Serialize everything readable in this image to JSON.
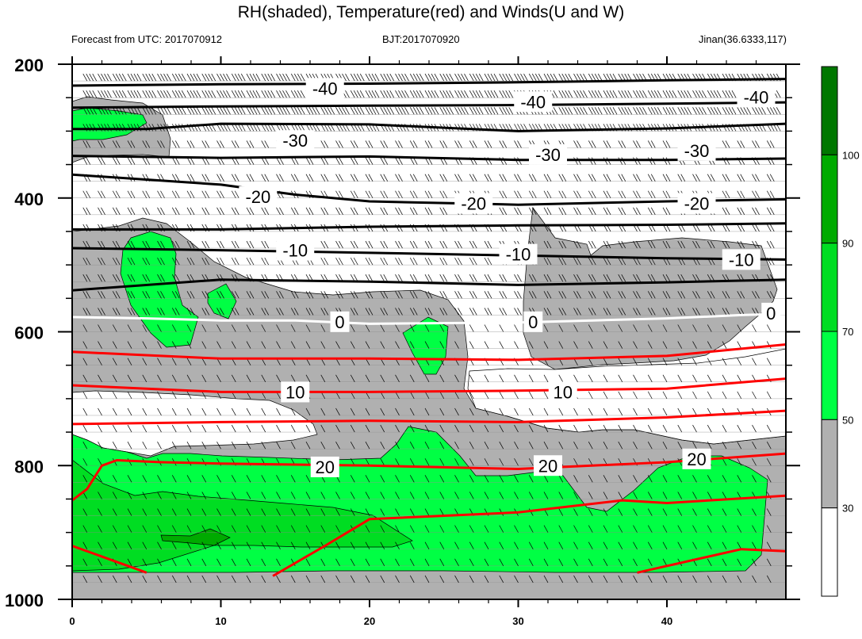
{
  "title": "RH(shaded), Temperature(red) and Winds(U and W)",
  "subtitle_left": "Forecast from UTC: 2017070912",
  "subtitle_center": "BJT:2017070920",
  "subtitle_right": "Jinan(36.6333,117)",
  "colors": {
    "rh_lt30": "#ffffff",
    "rh_30_50": "#b0b0b0",
    "rh_50_70": "#00ff44",
    "rh_70_90": "#00dd22",
    "rh_90_100": "#00aa00",
    "rh_gt100": "#007700",
    "temp_positive": "#ff0000",
    "temp_zero": "#ffffff",
    "temp_negative": "#000000"
  },
  "chart_data": {
    "type": "heatmap",
    "x_range": [
      0,
      48
    ],
    "y_range": [
      200,
      1000
    ],
    "y_inverted": true,
    "x_ticks": [
      0,
      10,
      20,
      30,
      40
    ],
    "y_ticks": [
      200,
      400,
      600,
      800,
      1000
    ],
    "colorbar": {
      "levels": [
        30,
        50,
        70,
        90,
        100
      ],
      "labels": [
        "30",
        "50",
        "70",
        "90",
        "100"
      ]
    },
    "temperature_contours": [
      {
        "value": -40,
        "label": "-40",
        "color": "#000000",
        "points": [
          [
            0,
            232
          ],
          [
            10,
            230
          ],
          [
            20,
            229
          ],
          [
            30,
            227
          ],
          [
            40,
            224
          ],
          [
            48,
            222
          ]
        ],
        "labels_at": [
          [
            17,
            236
          ],
          [
            31,
            256
          ],
          [
            46,
            249
          ]
        ]
      },
      {
        "value": -40,
        "label": "",
        "color": "#000000",
        "points": [
          [
            0,
            265
          ],
          [
            10,
            263
          ],
          [
            20,
            262
          ],
          [
            30,
            261
          ],
          [
            40,
            259
          ],
          [
            48,
            257
          ]
        ],
        "labels_at": []
      },
      {
        "value": -30,
        "label": "-30",
        "color": "#000000",
        "points": [
          [
            0,
            297
          ],
          [
            5,
            297
          ],
          [
            10,
            289
          ],
          [
            20,
            290
          ],
          [
            30,
            300
          ],
          [
            40,
            296
          ],
          [
            48,
            289
          ]
        ],
        "labels_at": [
          [
            15,
            314
          ],
          [
            32,
            335
          ],
          [
            42,
            329
          ]
        ]
      },
      {
        "value": -30,
        "label": "",
        "color": "#000000",
        "points": [
          [
            0,
            337
          ],
          [
            10,
            340
          ],
          [
            20,
            338
          ],
          [
            30,
            343
          ],
          [
            40,
            343
          ],
          [
            48,
            341
          ]
        ],
        "labels_at": []
      },
      {
        "value": -20,
        "label": "-20",
        "color": "#000000",
        "points": [
          [
            0,
            365
          ],
          [
            10,
            380
          ],
          [
            15,
            395
          ],
          [
            20,
            405
          ],
          [
            30,
            410
          ],
          [
            40,
            405
          ],
          [
            48,
            402
          ]
        ],
        "labels_at": [
          [
            12.5,
            398
          ],
          [
            27,
            408
          ],
          [
            42,
            408
          ]
        ]
      },
      {
        "value": -20,
        "label": "",
        "color": "#000000",
        "points": [
          [
            0,
            447
          ],
          [
            10,
            447
          ],
          [
            20,
            443
          ],
          [
            30,
            441
          ],
          [
            40,
            440
          ],
          [
            48,
            438
          ]
        ],
        "labels_at": []
      },
      {
        "value": -10,
        "label": "-10",
        "color": "#000000",
        "points": [
          [
            0,
            475
          ],
          [
            10,
            478
          ],
          [
            20,
            482
          ],
          [
            30,
            486
          ],
          [
            40,
            490
          ],
          [
            48,
            492
          ]
        ],
        "labels_at": [
          [
            15,
            478
          ],
          [
            30,
            484
          ],
          [
            45,
            492
          ]
        ]
      },
      {
        "value": -10,
        "label": "",
        "color": "#000000",
        "points": [
          [
            0,
            538
          ],
          [
            10,
            522
          ],
          [
            20,
            525
          ],
          [
            30,
            530
          ],
          [
            40,
            526
          ],
          [
            48,
            522
          ]
        ],
        "labels_at": []
      },
      {
        "value": 0,
        "label": "0",
        "color": "#ffffff",
        "points": [
          [
            0,
            578
          ],
          [
            5,
            580
          ],
          [
            10,
            583
          ],
          [
            15,
            583
          ],
          [
            20,
            588
          ],
          [
            30,
            586
          ],
          [
            35,
            583
          ],
          [
            40,
            580
          ],
          [
            45,
            575
          ],
          [
            48,
            573
          ]
        ],
        "labels_at": [
          [
            18,
            585
          ],
          [
            31,
            585
          ],
          [
            47,
            572
          ]
        ]
      },
      {
        "value": 0,
        "label": "",
        "color": "#ff0000",
        "points": [
          [
            0,
            630
          ],
          [
            10,
            640
          ],
          [
            20,
            640
          ],
          [
            30,
            642
          ],
          [
            40,
            636
          ],
          [
            48,
            619
          ]
        ],
        "labels_at": []
      },
      {
        "value": 10,
        "label": "10",
        "color": "#ff0000",
        "points": [
          [
            0,
            680
          ],
          [
            5,
            685
          ],
          [
            10,
            690
          ],
          [
            20,
            690
          ],
          [
            30,
            688
          ],
          [
            40,
            685
          ],
          [
            48,
            670
          ]
        ],
        "labels_at": [
          [
            15,
            690
          ],
          [
            33,
            690
          ]
        ]
      },
      {
        "value": 10,
        "label": "",
        "color": "#ff0000",
        "points": [
          [
            0,
            738
          ],
          [
            10,
            735
          ],
          [
            20,
            733
          ],
          [
            30,
            735
          ],
          [
            40,
            728
          ],
          [
            48,
            718
          ]
        ],
        "labels_at": []
      },
      {
        "value": 20,
        "label": "20",
        "color": "#ff0000",
        "points": [
          [
            0,
            852
          ],
          [
            1,
            835
          ],
          [
            2,
            800
          ],
          [
            3,
            792
          ],
          [
            6,
            795
          ],
          [
            10,
            797
          ],
          [
            20,
            800
          ],
          [
            30,
            805
          ],
          [
            40,
            795
          ],
          [
            48,
            782
          ]
        ],
        "labels_at": [
          [
            17,
            802
          ],
          [
            32,
            800
          ],
          [
            42,
            790
          ]
        ]
      },
      {
        "value": 20,
        "label": "",
        "color": "#ff0000",
        "points": [
          [
            13.5,
            965
          ],
          [
            17,
            920
          ],
          [
            20,
            880
          ],
          [
            30,
            870
          ],
          [
            37,
            852
          ],
          [
            40,
            856
          ],
          [
            48,
            845
          ]
        ],
        "labels_at": []
      },
      {
        "value": 30,
        "label": "",
        "color": "#ff0000",
        "points": [
          [
            0,
            920
          ],
          [
            5,
            960
          ]
        ],
        "labels_at": []
      },
      {
        "value": 30,
        "label": "",
        "color": "#ff0000",
        "points": [
          [
            38,
            960
          ],
          [
            45,
            925
          ],
          [
            48,
            928
          ]
        ],
        "labels_at": []
      }
    ]
  }
}
